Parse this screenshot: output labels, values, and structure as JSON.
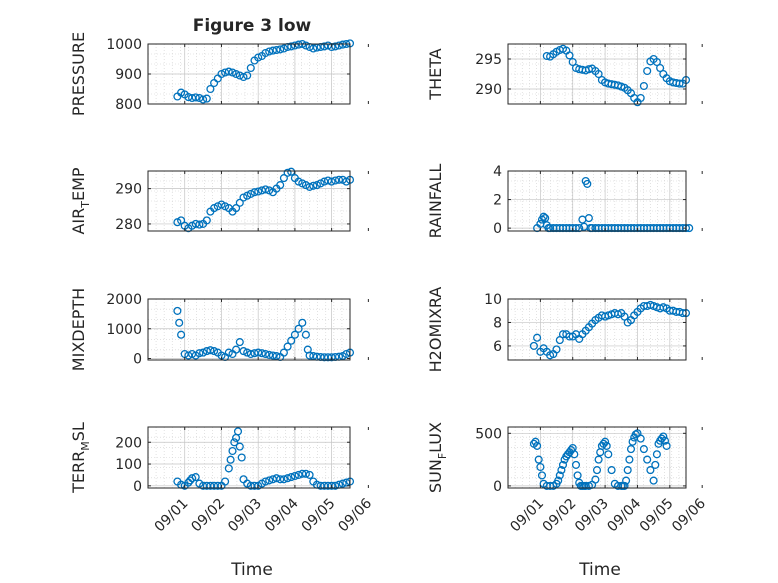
{
  "figure": {
    "title": "Figure 3 low"
  },
  "colors": {
    "marker": "#0072BD",
    "grid": "#d0d0d0",
    "axis": "#262626",
    "background": "#ffffff"
  },
  "chart_data": [
    {
      "type": "scatter",
      "ylabel": "PRESSURE",
      "ylabel_sub": "",
      "ylabel_tail": "",
      "ylim": [
        800,
        1000
      ],
      "yticks": [
        800,
        900,
        1000
      ],
      "yticklabels": [
        "800",
        "900",
        "1000"
      ],
      "xticks": [
        "09/01",
        "09/02",
        "09/03",
        "09/04",
        "09/05",
        "09/06"
      ],
      "xlabel": "",
      "grid": "dotted",
      "x": [
        0.8,
        0.9,
        1.0,
        1.1,
        1.2,
        1.3,
        1.4,
        1.5,
        1.6,
        1.7,
        1.8,
        1.9,
        2.0,
        2.1,
        2.2,
        2.3,
        2.4,
        2.5,
        2.6,
        2.7,
        2.8,
        2.9,
        3.0,
        3.1,
        3.2,
        3.3,
        3.4,
        3.5,
        3.6,
        3.7,
        3.8,
        3.9,
        4.0,
        4.1,
        4.2,
        4.3,
        4.4,
        4.5,
        4.6,
        4.7,
        4.8,
        4.9,
        5.0,
        5.1,
        5.2,
        5.3,
        5.4,
        5.5
      ],
      "y": [
        825,
        838,
        832,
        823,
        820,
        822,
        820,
        815,
        818,
        850,
        870,
        885,
        900,
        905,
        908,
        905,
        900,
        895,
        890,
        895,
        920,
        945,
        955,
        960,
        970,
        975,
        978,
        980,
        982,
        985,
        990,
        992,
        995,
        998,
        1000,
        995,
        990,
        985,
        988,
        990,
        992,
        995,
        990,
        992,
        995,
        998,
        1000,
        1002
      ]
    },
    {
      "type": "scatter",
      "ylabel": "THETA",
      "ylabel_sub": "",
      "ylabel_tail": "",
      "ylim": [
        287.5,
        297.5
      ],
      "yticks": [
        290,
        295
      ],
      "yticklabels": [
        "290",
        "295"
      ],
      "xticks": [
        "09/01",
        "09/02",
        "09/03",
        "09/04",
        "09/05",
        "09/06"
      ],
      "xlabel": "",
      "grid": "dotted",
      "x": [
        1.2,
        1.3,
        1.4,
        1.5,
        1.6,
        1.7,
        1.8,
        1.9,
        2.0,
        2.1,
        2.2,
        2.3,
        2.4,
        2.5,
        2.6,
        2.7,
        2.8,
        2.9,
        3.0,
        3.1,
        3.2,
        3.3,
        3.4,
        3.5,
        3.6,
        3.7,
        3.8,
        3.9,
        4.0,
        4.1,
        4.2,
        4.3,
        4.4,
        4.5,
        4.6,
        4.7,
        4.8,
        4.9,
        5.0,
        5.1,
        5.2,
        5.3,
        5.4,
        5.5
      ],
      "y": [
        295.5,
        295.4,
        295.8,
        296.2,
        296.5,
        296.7,
        296.4,
        295.6,
        294.5,
        293.5,
        293.3,
        293.2,
        293.1,
        293.3,
        293.4,
        293.0,
        292.5,
        291.5,
        291.1,
        290.9,
        290.8,
        290.7,
        290.6,
        290.4,
        290.2,
        289.8,
        289.3,
        288.5,
        287.8,
        288.5,
        290.5,
        293.0,
        294.6,
        295.0,
        294.5,
        293.5,
        292.5,
        291.8,
        291.3,
        291.1,
        291.0,
        290.9,
        290.9,
        291.5
      ]
    },
    {
      "type": "scatter",
      "ylabel": "AIR",
      "ylabel_sub": "T",
      "ylabel_tail": "EMP",
      "ylim": [
        278,
        295
      ],
      "yticks": [
        280,
        290
      ],
      "yticklabels": [
        "280",
        "290"
      ],
      "xticks": [
        "09/01",
        "09/02",
        "09/03",
        "09/04",
        "09/05",
        "09/06"
      ],
      "xlabel": "",
      "grid": "dotted",
      "x": [
        0.8,
        0.9,
        1.0,
        1.1,
        1.2,
        1.3,
        1.4,
        1.5,
        1.6,
        1.7,
        1.8,
        1.9,
        2.0,
        2.1,
        2.2,
        2.3,
        2.4,
        2.5,
        2.6,
        2.7,
        2.8,
        2.9,
        3.0,
        3.1,
        3.2,
        3.3,
        3.4,
        3.5,
        3.6,
        3.7,
        3.8,
        3.9,
        4.0,
        4.1,
        4.2,
        4.3,
        4.4,
        4.5,
        4.6,
        4.7,
        4.8,
        4.9,
        5.0,
        5.1,
        5.2,
        5.3,
        5.4,
        5.5
      ],
      "y": [
        280.5,
        281.0,
        279.5,
        278.8,
        279.5,
        280.0,
        279.8,
        280.0,
        281.0,
        283.5,
        284.5,
        285.0,
        285.5,
        285.0,
        284.5,
        283.5,
        284.5,
        286.0,
        287.5,
        288.0,
        288.5,
        289.0,
        289.2,
        289.5,
        289.8,
        289.5,
        289.0,
        290.0,
        291.0,
        293.0,
        294.5,
        294.8,
        293.0,
        292.0,
        291.5,
        291.0,
        290.5,
        290.8,
        291.0,
        291.5,
        292.0,
        292.3,
        292.0,
        292.3,
        292.5,
        292.5,
        292.0,
        292.5
      ]
    },
    {
      "type": "scatter",
      "ylabel": "RAINFALL",
      "ylabel_sub": "",
      "ylabel_tail": "",
      "ylim": [
        -0.2,
        4
      ],
      "yticks": [
        0,
        2,
        4
      ],
      "yticklabels": [
        "0",
        "2",
        "4"
      ],
      "xticks": [
        "09/01",
        "09/02",
        "09/03",
        "09/04",
        "09/05",
        "09/06"
      ],
      "xlabel": "",
      "grid": "dotted",
      "x": [
        0.9,
        1.0,
        1.05,
        1.1,
        1.15,
        1.2,
        1.25,
        1.3,
        1.4,
        1.5,
        1.6,
        1.7,
        1.8,
        1.9,
        2.0,
        2.1,
        2.2,
        2.3,
        2.35,
        2.4,
        2.45,
        2.5,
        2.55,
        2.6,
        2.7,
        2.8,
        2.9,
        3.0,
        3.1,
        3.2,
        3.3,
        3.4,
        3.5,
        3.6,
        3.7,
        3.8,
        3.9,
        4.0,
        4.1,
        4.2,
        4.3,
        4.4,
        4.5,
        4.6,
        4.7,
        4.8,
        4.9,
        5.0,
        5.1,
        5.2,
        5.3,
        5.4,
        5.5,
        5.6
      ],
      "y": [
        0,
        0.3,
        0.6,
        0.8,
        0.7,
        0.2,
        0,
        0,
        0,
        0,
        0,
        0,
        0,
        0,
        0,
        0,
        0,
        0.6,
        0.1,
        3.3,
        3.1,
        0.7,
        0,
        0,
        0,
        0,
        0,
        0,
        0,
        0,
        0,
        0,
        0,
        0,
        0,
        0,
        0,
        0,
        0,
        0,
        0,
        0,
        0,
        0,
        0,
        0,
        0,
        0,
        0,
        0,
        0,
        0,
        0,
        0
      ]
    },
    {
      "type": "scatter",
      "ylabel": "MIXDEPTH",
      "ylabel_sub": "",
      "ylabel_tail": "",
      "ylim": [
        -50,
        2000
      ],
      "yticks": [
        0,
        1000,
        2000
      ],
      "yticklabels": [
        "0",
        "1000",
        "2000"
      ],
      "xticks": [
        "09/01",
        "09/02",
        "09/03",
        "09/04",
        "09/05",
        "09/06"
      ],
      "xlabel": "",
      "grid": "dotted",
      "x": [
        0.8,
        0.85,
        0.9,
        1.0,
        1.1,
        1.2,
        1.3,
        1.4,
        1.5,
        1.6,
        1.7,
        1.8,
        1.9,
        2.0,
        2.1,
        2.2,
        2.3,
        2.4,
        2.5,
        2.6,
        2.7,
        2.8,
        2.9,
        3.0,
        3.1,
        3.2,
        3.3,
        3.4,
        3.5,
        3.6,
        3.7,
        3.8,
        3.9,
        4.0,
        4.1,
        4.2,
        4.3,
        4.35,
        4.4,
        4.5,
        4.6,
        4.7,
        4.8,
        4.9,
        5.0,
        5.1,
        5.2,
        5.3,
        5.4,
        5.5
      ],
      "y": [
        1600,
        1200,
        800,
        150,
        100,
        150,
        100,
        180,
        200,
        250,
        280,
        250,
        200,
        100,
        50,
        200,
        150,
        300,
        550,
        250,
        200,
        150,
        180,
        200,
        180,
        150,
        120,
        100,
        80,
        50,
        200,
        400,
        600,
        800,
        1000,
        1200,
        800,
        300,
        100,
        80,
        60,
        50,
        40,
        40,
        40,
        50,
        60,
        80,
        150,
        200
      ]
    },
    {
      "type": "scatter",
      "ylabel": "H2OMIXRA",
      "ylabel_sub": "",
      "ylabel_tail": "",
      "ylim": [
        4.8,
        10
      ],
      "yticks": [
        6,
        8,
        10
      ],
      "yticklabels": [
        "6",
        "8",
        "10"
      ],
      "xticks": [
        "09/01",
        "09/02",
        "09/03",
        "09/04",
        "09/05",
        "09/06"
      ],
      "xlabel": "",
      "grid": "dotted",
      "x": [
        0.8,
        0.9,
        1.0,
        1.1,
        1.2,
        1.3,
        1.4,
        1.5,
        1.6,
        1.7,
        1.8,
        1.9,
        2.0,
        2.1,
        2.2,
        2.3,
        2.4,
        2.5,
        2.6,
        2.7,
        2.8,
        2.9,
        3.0,
        3.1,
        3.2,
        3.3,
        3.4,
        3.5,
        3.6,
        3.7,
        3.8,
        3.9,
        4.0,
        4.1,
        4.2,
        4.3,
        4.4,
        4.5,
        4.6,
        4.7,
        4.8,
        4.9,
        5.0,
        5.1,
        5.2,
        5.3,
        5.4,
        5.5
      ],
      "y": [
        6.0,
        6.7,
        5.5,
        5.8,
        5.5,
        5.2,
        5.3,
        5.7,
        6.5,
        7.0,
        7.0,
        6.8,
        6.8,
        7.0,
        6.6,
        7.0,
        7.3,
        7.6,
        7.9,
        8.2,
        8.4,
        8.6,
        8.5,
        8.6,
        8.7,
        8.8,
        8.7,
        8.8,
        8.5,
        8.0,
        8.2,
        8.6,
        8.9,
        9.2,
        9.4,
        9.4,
        9.5,
        9.4,
        9.3,
        9.2,
        9.3,
        9.2,
        9.0,
        9.0,
        8.9,
        8.9,
        8.8,
        8.8
      ]
    },
    {
      "type": "scatter",
      "ylabel": "TERR",
      "ylabel_sub": "M",
      "ylabel_tail": "SL",
      "ylim": [
        -10,
        270
      ],
      "yticks": [
        0,
        100,
        200
      ],
      "yticklabels": [
        "0",
        "100",
        "200"
      ],
      "xticks": [
        "09/01",
        "09/02",
        "09/03",
        "09/04",
        "09/05",
        "09/06"
      ],
      "xlabel": "Time",
      "grid": "dotted",
      "x": [
        0.8,
        0.9,
        1.0,
        1.1,
        1.15,
        1.2,
        1.3,
        1.4,
        1.5,
        1.6,
        1.7,
        1.8,
        1.9,
        2.0,
        2.1,
        2.2,
        2.25,
        2.3,
        2.35,
        2.4,
        2.45,
        2.5,
        2.55,
        2.6,
        2.7,
        2.8,
        2.9,
        3.0,
        3.1,
        3.2,
        3.3,
        3.4,
        3.5,
        3.6,
        3.7,
        3.8,
        3.9,
        4.0,
        4.1,
        4.2,
        4.3,
        4.4,
        4.5,
        4.6,
        4.7,
        4.8,
        4.9,
        5.0,
        5.1,
        5.2,
        5.3,
        5.4,
        5.5
      ],
      "y": [
        20,
        5,
        0,
        15,
        25,
        35,
        40,
        10,
        0,
        0,
        0,
        0,
        0,
        0,
        20,
        80,
        120,
        160,
        200,
        220,
        250,
        180,
        130,
        30,
        10,
        0,
        0,
        0,
        10,
        20,
        25,
        30,
        35,
        30,
        30,
        35,
        40,
        45,
        50,
        55,
        55,
        50,
        20,
        5,
        0,
        0,
        0,
        0,
        0,
        5,
        10,
        15,
        20
      ]
    },
    {
      "type": "scatter",
      "ylabel": "SUN",
      "ylabel_sub": "F",
      "ylabel_tail": "LUX",
      "ylim": [
        -20,
        560
      ],
      "yticks": [
        0,
        500
      ],
      "yticklabels": [
        "0",
        "500"
      ],
      "xticks": [
        "09/01",
        "09/02",
        "09/03",
        "09/04",
        "09/05",
        "09/06"
      ],
      "xlabel": "Time",
      "grid": "dotted",
      "x": [
        0.8,
        0.85,
        0.9,
        0.95,
        1.0,
        1.05,
        1.1,
        1.2,
        1.3,
        1.4,
        1.5,
        1.55,
        1.6,
        1.65,
        1.7,
        1.75,
        1.8,
        1.85,
        1.9,
        1.95,
        2.0,
        2.05,
        2.1,
        2.15,
        2.2,
        2.25,
        2.3,
        2.35,
        2.4,
        2.5,
        2.6,
        2.7,
        2.75,
        2.8,
        2.85,
        2.9,
        2.95,
        3.0,
        3.05,
        3.1,
        3.2,
        3.3,
        3.4,
        3.5,
        3.55,
        3.6,
        3.65,
        3.7,
        3.75,
        3.8,
        3.85,
        3.9,
        3.95,
        4.0,
        4.1,
        4.2,
        4.3,
        4.4,
        4.5,
        4.55,
        4.6,
        4.65,
        4.7,
        4.75,
        4.8,
        4.85,
        4.9
      ],
      "y": [
        400,
        420,
        380,
        250,
        180,
        100,
        20,
        0,
        0,
        0,
        20,
        50,
        100,
        150,
        200,
        250,
        280,
        300,
        320,
        340,
        360,
        300,
        200,
        100,
        30,
        0,
        0,
        0,
        0,
        0,
        10,
        60,
        150,
        250,
        320,
        380,
        400,
        420,
        380,
        300,
        150,
        20,
        0,
        0,
        0,
        0,
        50,
        150,
        250,
        350,
        420,
        460,
        490,
        500,
        450,
        350,
        250,
        150,
        50,
        200,
        300,
        400,
        430,
        450,
        470,
        430,
        380
      ]
    }
  ]
}
